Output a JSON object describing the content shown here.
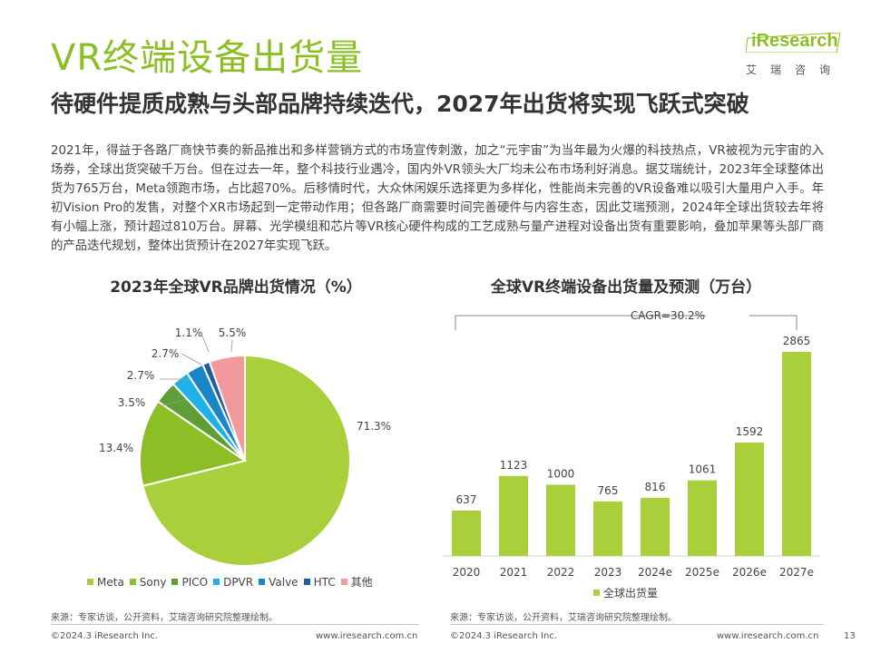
{
  "header": {
    "title": "VR终端设备出货量",
    "subtitle": "待硬件提质成熟与头部品牌持续迭代，2027年出货将实现飞跃式突破"
  },
  "logo": {
    "text": "iResearch",
    "cn": "艾瑞咨询"
  },
  "body_text": "2021年，得益于各路厂商快节奏的新品推出和多样营销方式的市场宣传刺激，加之“元宇宙”为当年最为火爆的科技热点，VR被视为元宇宙的入场券，全球出货突破千万台。但在过去一年，整个科技行业遇冷，国内外VR领头大厂均未公布市场利好消息。据艾瑞统计，2023年全球整体出货为765万台，Meta领跑市场，占比超70%。后移情时代，大众休闲娱乐选择更为多样化，性能尚未完善的VR设备难以吸引大量用户入手。年初Vision Pro的发售，对整个XR市场起到一定带动作用；但各路厂商需要时间完善硬件与内容生态，因此艾瑞预测，2024年全球出货较去年将有小幅上涨，预计超过810万台。屏幕、光学模组和芯片等VR核心硬件构成的工艺成熟与量产进程对设备出货有重要影响，叠加苹果等头部厂商的产品迭代规划，整体出货预计在2027年实现飞跃。",
  "chart_data": [
    {
      "type": "pie",
      "title": "2023年全球VR品牌出货情况（%）",
      "slices": [
        {
          "name": "Meta",
          "value": 71.3,
          "label": "71.3%",
          "color": "#a9cf3b"
        },
        {
          "name": "Sony",
          "value": 13.4,
          "label": "13.4%",
          "color": "#8cbf26"
        },
        {
          "name": "PICO",
          "value": 3.5,
          "label": "3.5%",
          "color": "#5f9e34"
        },
        {
          "name": "DPVR",
          "value": 2.7,
          "label": "2.7%",
          "color": "#1fb2e8"
        },
        {
          "name": "Valve",
          "value": 2.7,
          "label": "2.7%",
          "color": "#1a86c5"
        },
        {
          "name": "HTC",
          "value": 1.1,
          "label": "1.1%",
          "color": "#1f5f9e"
        },
        {
          "name": "其他",
          "value": 5.5,
          "label": "5.5%",
          "color": "#f2999e"
        }
      ]
    },
    {
      "type": "bar",
      "title": "全球VR终端设备出货量及预测（万台）",
      "categories": [
        "2020",
        "2021",
        "2022",
        "2023",
        "2024e",
        "2025e",
        "2026e",
        "2027e"
      ],
      "series": [
        {
          "name": "全球出货量",
          "values": [
            637,
            1123,
            1000,
            765,
            816,
            1061,
            1592,
            2865
          ],
          "color": "#a9cf3b"
        }
      ],
      "annotation": "CAGR=30.2%",
      "ylim": [
        0,
        2865
      ]
    }
  ],
  "source_left": "来源：专家访谈，公开资料，艾瑞咨询研究院整理绘制。",
  "source_right": "来源：专家访谈，公开资料，艾瑞咨询研究院整理绘制。",
  "footer": {
    "copyright_left": "©2024.3 iResearch Inc.",
    "url_left": "www.iresearch.com.cn",
    "copyright_right": "©2024.3 iResearch Inc.",
    "url_right": "www.iresearch.com.cn",
    "page_number": "13"
  }
}
